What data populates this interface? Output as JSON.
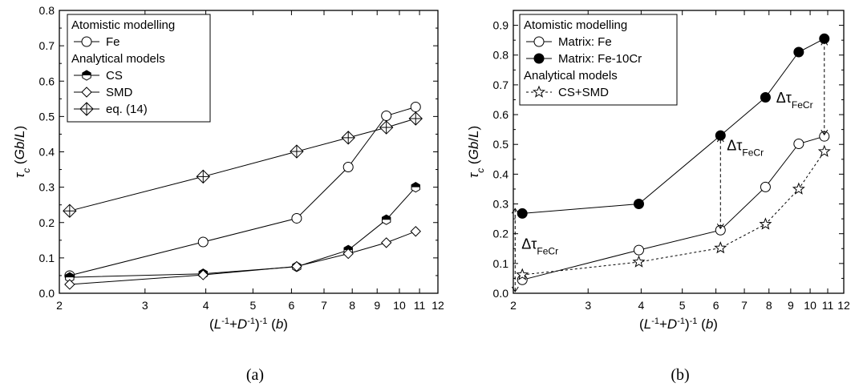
{
  "chart_data": [
    {
      "type": "line",
      "panel_label": "(a)",
      "xlabel": "(L⁻¹+D⁻¹)⁻¹ (b)",
      "ylabel": "τc (Gb/L)",
      "xscale": "log",
      "xlim": [
        2,
        12
      ],
      "ylim": [
        0,
        0.8
      ],
      "xticks": [
        2,
        3,
        4,
        5,
        6,
        7,
        8,
        9,
        10,
        11,
        12
      ],
      "yticks": [
        0.0,
        0.1,
        0.2,
        0.3,
        0.4,
        0.5,
        0.6,
        0.7,
        0.8
      ],
      "grid": false,
      "legend_position": "top-left",
      "legend": [
        {
          "kind": "header",
          "text": "Atomistic modelling"
        },
        {
          "kind": "entry",
          "text": "Fe",
          "series": 0
        },
        {
          "kind": "header",
          "text": "Analytical models"
        },
        {
          "kind": "entry",
          "text": "CS",
          "series": 1
        },
        {
          "kind": "entry",
          "text": "SMD",
          "series": 2
        },
        {
          "kind": "entry",
          "text": "eq. (14)",
          "series": 3
        }
      ],
      "series": [
        {
          "name": "Fe",
          "marker": "circle-open",
          "line": "solid",
          "x": [
            2.1,
            3.95,
            6.15,
            7.85,
            9.4,
            10.8
          ],
          "y": [
            0.05,
            0.145,
            0.212,
            0.357,
            0.502,
            0.527
          ]
        },
        {
          "name": "CS",
          "marker": "hexagon-half",
          "line": "solid",
          "x": [
            2.1,
            3.95,
            6.15,
            7.85,
            9.4,
            10.8
          ],
          "y": [
            0.045,
            0.055,
            0.075,
            0.122,
            0.208,
            0.3
          ]
        },
        {
          "name": "SMD",
          "marker": "diamond-open",
          "line": "solid",
          "x": [
            2.1,
            3.95,
            6.15,
            7.85,
            9.4,
            10.8
          ],
          "y": [
            0.025,
            0.052,
            0.076,
            0.112,
            0.143,
            0.175
          ]
        },
        {
          "name": "eq. (14)",
          "marker": "diamond-cross",
          "line": "solid",
          "x": [
            2.1,
            3.95,
            6.15,
            7.85,
            9.4,
            10.8
          ],
          "y": [
            0.233,
            0.33,
            0.401,
            0.44,
            0.469,
            0.494
          ]
        }
      ]
    },
    {
      "type": "line",
      "panel_label": "(b)",
      "xlabel": "(L⁻¹+D⁻¹)⁻¹ (b)",
      "ylabel": "τc (Gb/L)",
      "xscale": "log",
      "xlim": [
        2,
        12
      ],
      "ylim": [
        0,
        0.95
      ],
      "xticks": [
        2,
        3,
        4,
        5,
        6,
        7,
        8,
        9,
        10,
        11,
        12
      ],
      "yticks": [
        0.0,
        0.1,
        0.2,
        0.3,
        0.4,
        0.5,
        0.6,
        0.7,
        0.8,
        0.9
      ],
      "grid": false,
      "legend_position": "top-left",
      "legend": [
        {
          "kind": "header",
          "text": "Atomistic modelling"
        },
        {
          "kind": "entry",
          "text": "Matrix: Fe",
          "series": 0
        },
        {
          "kind": "entry",
          "text": "Matrix: Fe-10Cr",
          "series": 1
        },
        {
          "kind": "header",
          "text": "Analytical models"
        },
        {
          "kind": "entry",
          "text": "CS+SMD",
          "series": 2
        }
      ],
      "series": [
        {
          "name": "Matrix: Fe",
          "marker": "circle-open",
          "line": "solid",
          "x": [
            2.1,
            3.95,
            6.15,
            7.85,
            9.4,
            10.8
          ],
          "y": [
            0.045,
            0.145,
            0.212,
            0.357,
            0.502,
            0.527
          ]
        },
        {
          "name": "Matrix: Fe-10Cr",
          "marker": "circle-filled",
          "line": "solid",
          "x": [
            2.1,
            3.95,
            6.15,
            7.85,
            9.4,
            10.8
          ],
          "y": [
            0.268,
            0.3,
            0.53,
            0.658,
            0.81,
            0.855
          ]
        },
        {
          "name": "CS+SMD",
          "marker": "star-open",
          "line": "dotted",
          "x": [
            2.1,
            3.95,
            6.15,
            7.85,
            9.4,
            10.8
          ],
          "y": [
            0.062,
            0.105,
            0.152,
            0.232,
            0.35,
            0.476
          ]
        }
      ],
      "annotations": [
        {
          "text": "ΔτFeCr",
          "arrow_x": 2.02,
          "from": 0.0,
          "to": 0.29,
          "label_anchor": "right",
          "label_y": 0.15
        },
        {
          "text": "ΔτFeCr",
          "arrow_x": 6.15,
          "from": 0.212,
          "to": 0.53,
          "label_anchor": "right",
          "label_y": 0.48
        },
        {
          "text": "ΔτFeCr",
          "arrow_x": 10.8,
          "from": 0.527,
          "to": 0.855,
          "label_anchor": "left",
          "label_y": 0.64
        }
      ]
    }
  ]
}
